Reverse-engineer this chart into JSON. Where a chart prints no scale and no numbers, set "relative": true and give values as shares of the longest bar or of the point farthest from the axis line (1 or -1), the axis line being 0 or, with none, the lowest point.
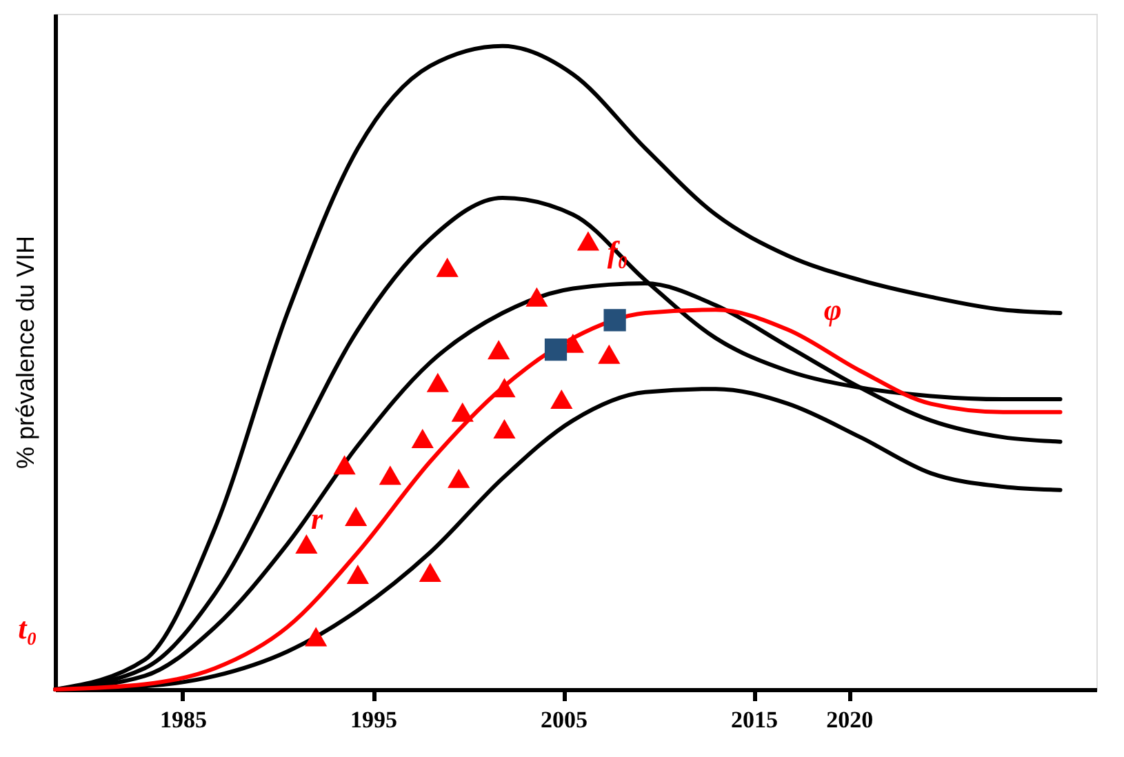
{
  "chart_data": {
    "type": "line",
    "ylabel": "% prévalence du VIH",
    "relative": true,
    "grid": false,
    "line_style": "solid",
    "x": [
      1978.3,
      1983.0,
      1986.7,
      1990.5,
      1994.2,
      1998.0,
      2001.8,
      2005.5,
      2009.3,
      2013.0,
      2016.8,
      2020.6,
      2024.3,
      2028.1,
      2031.1
    ],
    "xlim": [
      1978.3,
      2033
    ],
    "xticks": [
      1985,
      1995,
      2005,
      2015,
      2020
    ],
    "series": [
      {
        "color": "#000000",
        "values": [
          0,
          0.046,
          0.251,
          0.585,
          0.841,
          0.969,
          1.0,
          0.956,
          0.841,
          0.738,
          0.674,
          0.636,
          0.61,
          0.59,
          0.585
        ]
      },
      {
        "color": "#000000",
        "values": [
          0,
          0.033,
          0.149,
          0.354,
          0.559,
          0.7,
          0.764,
          0.738,
          0.636,
          0.546,
          0.495,
          0.469,
          0.456,
          0.451,
          0.451
        ]
      },
      {
        "color": "#000000",
        "values": [
          0,
          0.021,
          0.097,
          0.226,
          0.379,
          0.508,
          0.585,
          0.623,
          0.631,
          0.597,
          0.533,
          0.469,
          0.418,
          0.392,
          0.385
        ]
      },
      {
        "color": "#000000",
        "values": [
          0,
          0.005,
          0.021,
          0.059,
          0.123,
          0.213,
          0.328,
          0.418,
          0.462,
          0.467,
          0.444,
          0.392,
          0.336,
          0.315,
          0.31
        ]
      },
      {
        "color": "#ff0000",
        "values": [
          0,
          0.008,
          0.033,
          0.097,
          0.213,
          0.354,
          0.469,
          0.546,
          0.585,
          0.59,
          0.559,
          0.495,
          0.444,
          0.431,
          0.431
        ]
      },
      {
        "type": "scatter",
        "marker": "triangle",
        "color": "#ff0000",
        "x": [
          1991.5,
          1993.5,
          1994.1,
          1994.2,
          1992.0,
          1995.9,
          1997.6,
          1998.0,
          1998.4,
          1998.9,
          1999.5,
          1999.7,
          2001.6,
          2001.9,
          2001.9,
          2003.6,
          2004.9,
          2005.5,
          2006.3,
          2007.4
        ],
        "values": [
          0.226,
          0.349,
          0.269,
          0.179,
          0.082,
          0.333,
          0.39,
          0.182,
          0.477,
          0.656,
          0.328,
          0.431,
          0.528,
          0.405,
          0.469,
          0.61,
          0.451,
          0.538,
          0.697,
          0.521
        ]
      },
      {
        "type": "scatter",
        "marker": "square",
        "color": "#25507a",
        "x": [
          2004.6,
          2007.7
        ],
        "values": [
          0.528,
          0.574
        ]
      }
    ],
    "annotations": [
      {
        "text": "t₀",
        "x": 1978.3,
        "y": 0
      },
      {
        "text": "r",
        "x": 1993.5,
        "y": 0.17
      },
      {
        "text": "f₀",
        "x": 2009.3,
        "y": 0.585
      },
      {
        "text": "φ",
        "x": 2020.6,
        "y": 0.495
      }
    ]
  }
}
